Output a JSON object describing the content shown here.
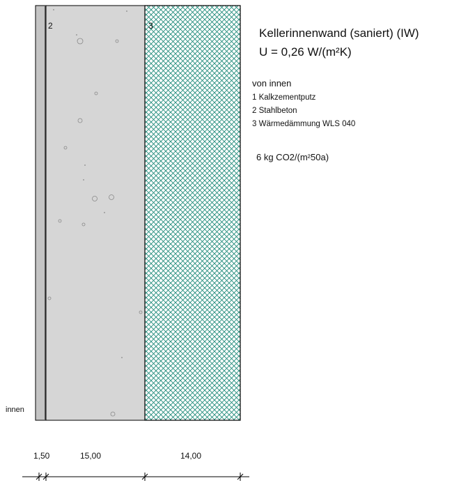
{
  "wall": {
    "title": "Kellerinnenwand (saniert) (IW)",
    "u_value": "U = 0,26 W/(m²K)",
    "direction_label": "von innen",
    "layers": [
      {
        "label": "1 Kalkzementputz"
      },
      {
        "label": "2 Stahlbeton"
      },
      {
        "label": "3 Wärmedämmung WLS 040"
      }
    ],
    "co2": "6 kg CO2/(m²50a)",
    "inside_label": "innen"
  },
  "section": {
    "layer_numbers": [
      "2",
      "3"
    ],
    "dimensions": [
      "1,50",
      "15,00",
      "14,00"
    ],
    "colors": {
      "plaster": "#c4c4c4",
      "concrete": "#d6d6d6",
      "insulation_hatch": "#1f8a7a",
      "outline": "#000000"
    }
  }
}
